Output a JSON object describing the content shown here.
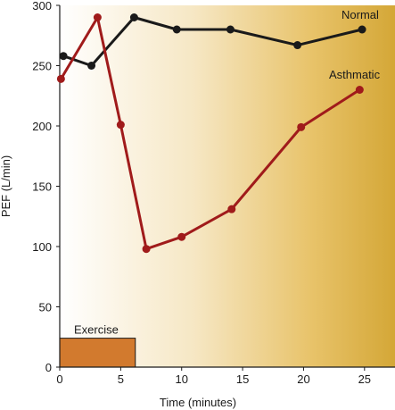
{
  "chart_data": {
    "type": "line",
    "title": "",
    "xlabel": "Time (minutes)",
    "ylabel": "PEF (L/min)",
    "xlim": [
      0,
      27.5
    ],
    "ylim": [
      0,
      300
    ],
    "x_ticks": [
      0,
      5,
      10,
      15,
      20,
      25
    ],
    "y_ticks": [
      0,
      50,
      100,
      150,
      200,
      250,
      300
    ],
    "grid": false,
    "background": "gradient from white (left) to gold (right)",
    "series": [
      {
        "name": "Normal",
        "color": "#1a1a1a",
        "x": [
          0.3,
          2.6,
          6.1,
          9.6,
          14.0,
          19.5,
          24.8
        ],
        "y": [
          258,
          250,
          290,
          280,
          280,
          267,
          280
        ]
      },
      {
        "name": "Asthmatic",
        "color": "#a01b1b",
        "x": [
          0.1,
          3.1,
          5.0,
          7.1,
          10.0,
          14.1,
          19.8,
          24.6
        ],
        "y": [
          239,
          290,
          201,
          98,
          108,
          131,
          199,
          230
        ]
      }
    ],
    "annotations": [
      {
        "label": "Exercise",
        "type": "band",
        "x_start": 0,
        "x_end": 6.2,
        "y_start": 0,
        "y_end": 24,
        "color": "#d27a2e"
      }
    ]
  }
}
